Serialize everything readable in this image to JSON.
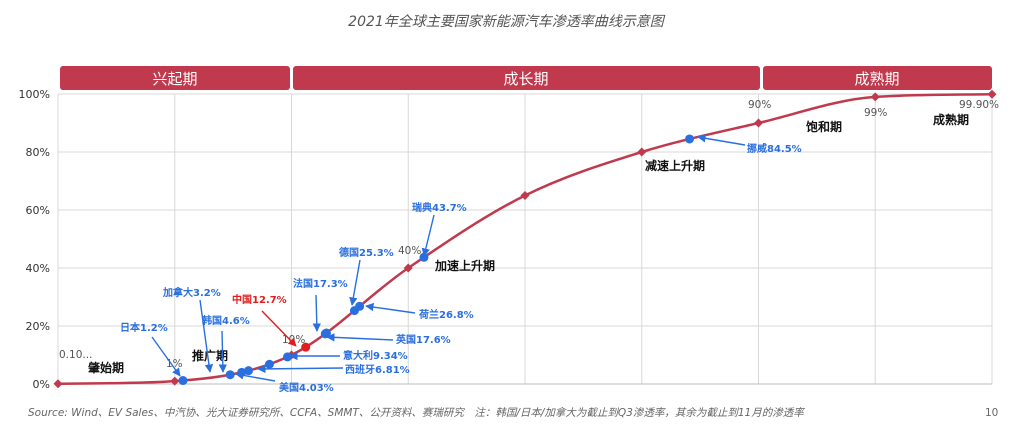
{
  "chart_data": {
    "type": "line",
    "title": "2021年全球主要国家新能源汽车渗透率曲线示意图",
    "phases": [
      {
        "label": "兴起期"
      },
      {
        "label": "成长期"
      },
      {
        "label": "成熟期"
      }
    ],
    "ylim": [
      0,
      100
    ],
    "yticks": [
      "0%",
      "20%",
      "40%",
      "60%",
      "80%",
      "100%"
    ],
    "grid": true,
    "curve": [
      {
        "x": 0,
        "y": 0.1
      },
      {
        "x": 5,
        "y": 1
      },
      {
        "x": 10,
        "y": 10
      },
      {
        "x": 15,
        "y": 40
      },
      {
        "x": 20,
        "y": 65
      },
      {
        "x": 25,
        "y": 80
      },
      {
        "x": 30,
        "y": 90
      },
      {
        "x": 35,
        "y": 99
      },
      {
        "x": 40,
        "y": 99.9
      }
    ],
    "countries": [
      {
        "name": "日本",
        "value": 1.2,
        "label": "日本1.2%",
        "color": "#2a6fe0"
      },
      {
        "name": "加拿大",
        "value": 3.2,
        "label": "加拿大3.2%",
        "color": "#2a6fe0"
      },
      {
        "name": "韩国",
        "value": 4.6,
        "label": "韩国4.6%",
        "color": "#2a6fe0"
      },
      {
        "name": "美国",
        "value": 4.03,
        "label": "美国4.03%",
        "color": "#2a6fe0"
      },
      {
        "name": "西班牙",
        "value": 6.81,
        "label": "西班牙6.81%",
        "color": "#2a6fe0"
      },
      {
        "name": "意大利",
        "value": 9.34,
        "label": "意大利9.34%",
        "color": "#2a6fe0"
      },
      {
        "name": "中国",
        "value": 12.7,
        "label": "中国12.7%",
        "color": "#e21d1d"
      },
      {
        "name": "法国",
        "value": 17.3,
        "label": "法国17.3%",
        "color": "#2a6fe0"
      },
      {
        "name": "英国",
        "value": 17.6,
        "label": "英国17.6%",
        "color": "#2a6fe0"
      },
      {
        "name": "德国",
        "value": 25.3,
        "label": "德国25.3%",
        "color": "#2a6fe0"
      },
      {
        "name": "荷兰",
        "value": 26.8,
        "label": "荷兰26.8%",
        "color": "#2a6fe0"
      },
      {
        "name": "瑞典",
        "value": 43.7,
        "label": "瑞典43.7%",
        "color": "#2a6fe0"
      },
      {
        "name": "挪威",
        "value": 84.5,
        "label": "挪威84.5%",
        "color": "#2a6fe0"
      }
    ],
    "stage_labels": [
      "肇始期",
      "推广期",
      "加速上升期",
      "减速上升期",
      "饱和期",
      "成熟期"
    ],
    "threshold_labels": [
      "0.10...",
      "1%",
      "10%",
      "40%",
      "90%",
      "99%",
      "99.90%"
    ],
    "source": "Source: Wind、EV Sales、中汽协、光大证券研究所、CCFA、SMMT、公开资料、赛瑞研究　注：韩国/日本/加拿大为截止到Q3渗透率，其余为截止到11月的渗透率",
    "page_number": "10",
    "colors": {
      "phase_band": "#c0394d",
      "curve": "#c0394d",
      "highlight": "#2a6fe0",
      "china": "#e21d1d"
    }
  }
}
